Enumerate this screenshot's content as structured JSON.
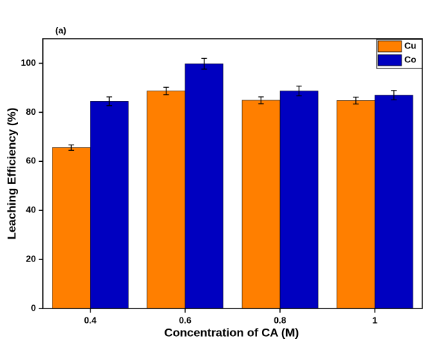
{
  "chart_data": {
    "type": "bar",
    "title": "(a)",
    "x_label": "Concentration of CA (M)",
    "y_label": "Leaching Efficiency (%)",
    "categories": [
      "0.4",
      "0.6",
      "0.8",
      "1"
    ],
    "series": [
      {
        "name": "Cu",
        "color": "#ff7f00",
        "values": [
          65.6,
          88.7,
          84.9,
          84.8
        ],
        "errors": [
          1.1,
          1.5,
          1.4,
          1.4
        ]
      },
      {
        "name": "Co",
        "color": "#0000c0",
        "values": [
          84.5,
          99.8,
          88.7,
          87.0
        ],
        "errors": [
          1.8,
          2.2,
          2.0,
          1.9
        ]
      }
    ],
    "ylim": [
      0,
      110
    ],
    "yticks": [
      0,
      20,
      40,
      60,
      80,
      100
    ],
    "legend": "top-right"
  }
}
